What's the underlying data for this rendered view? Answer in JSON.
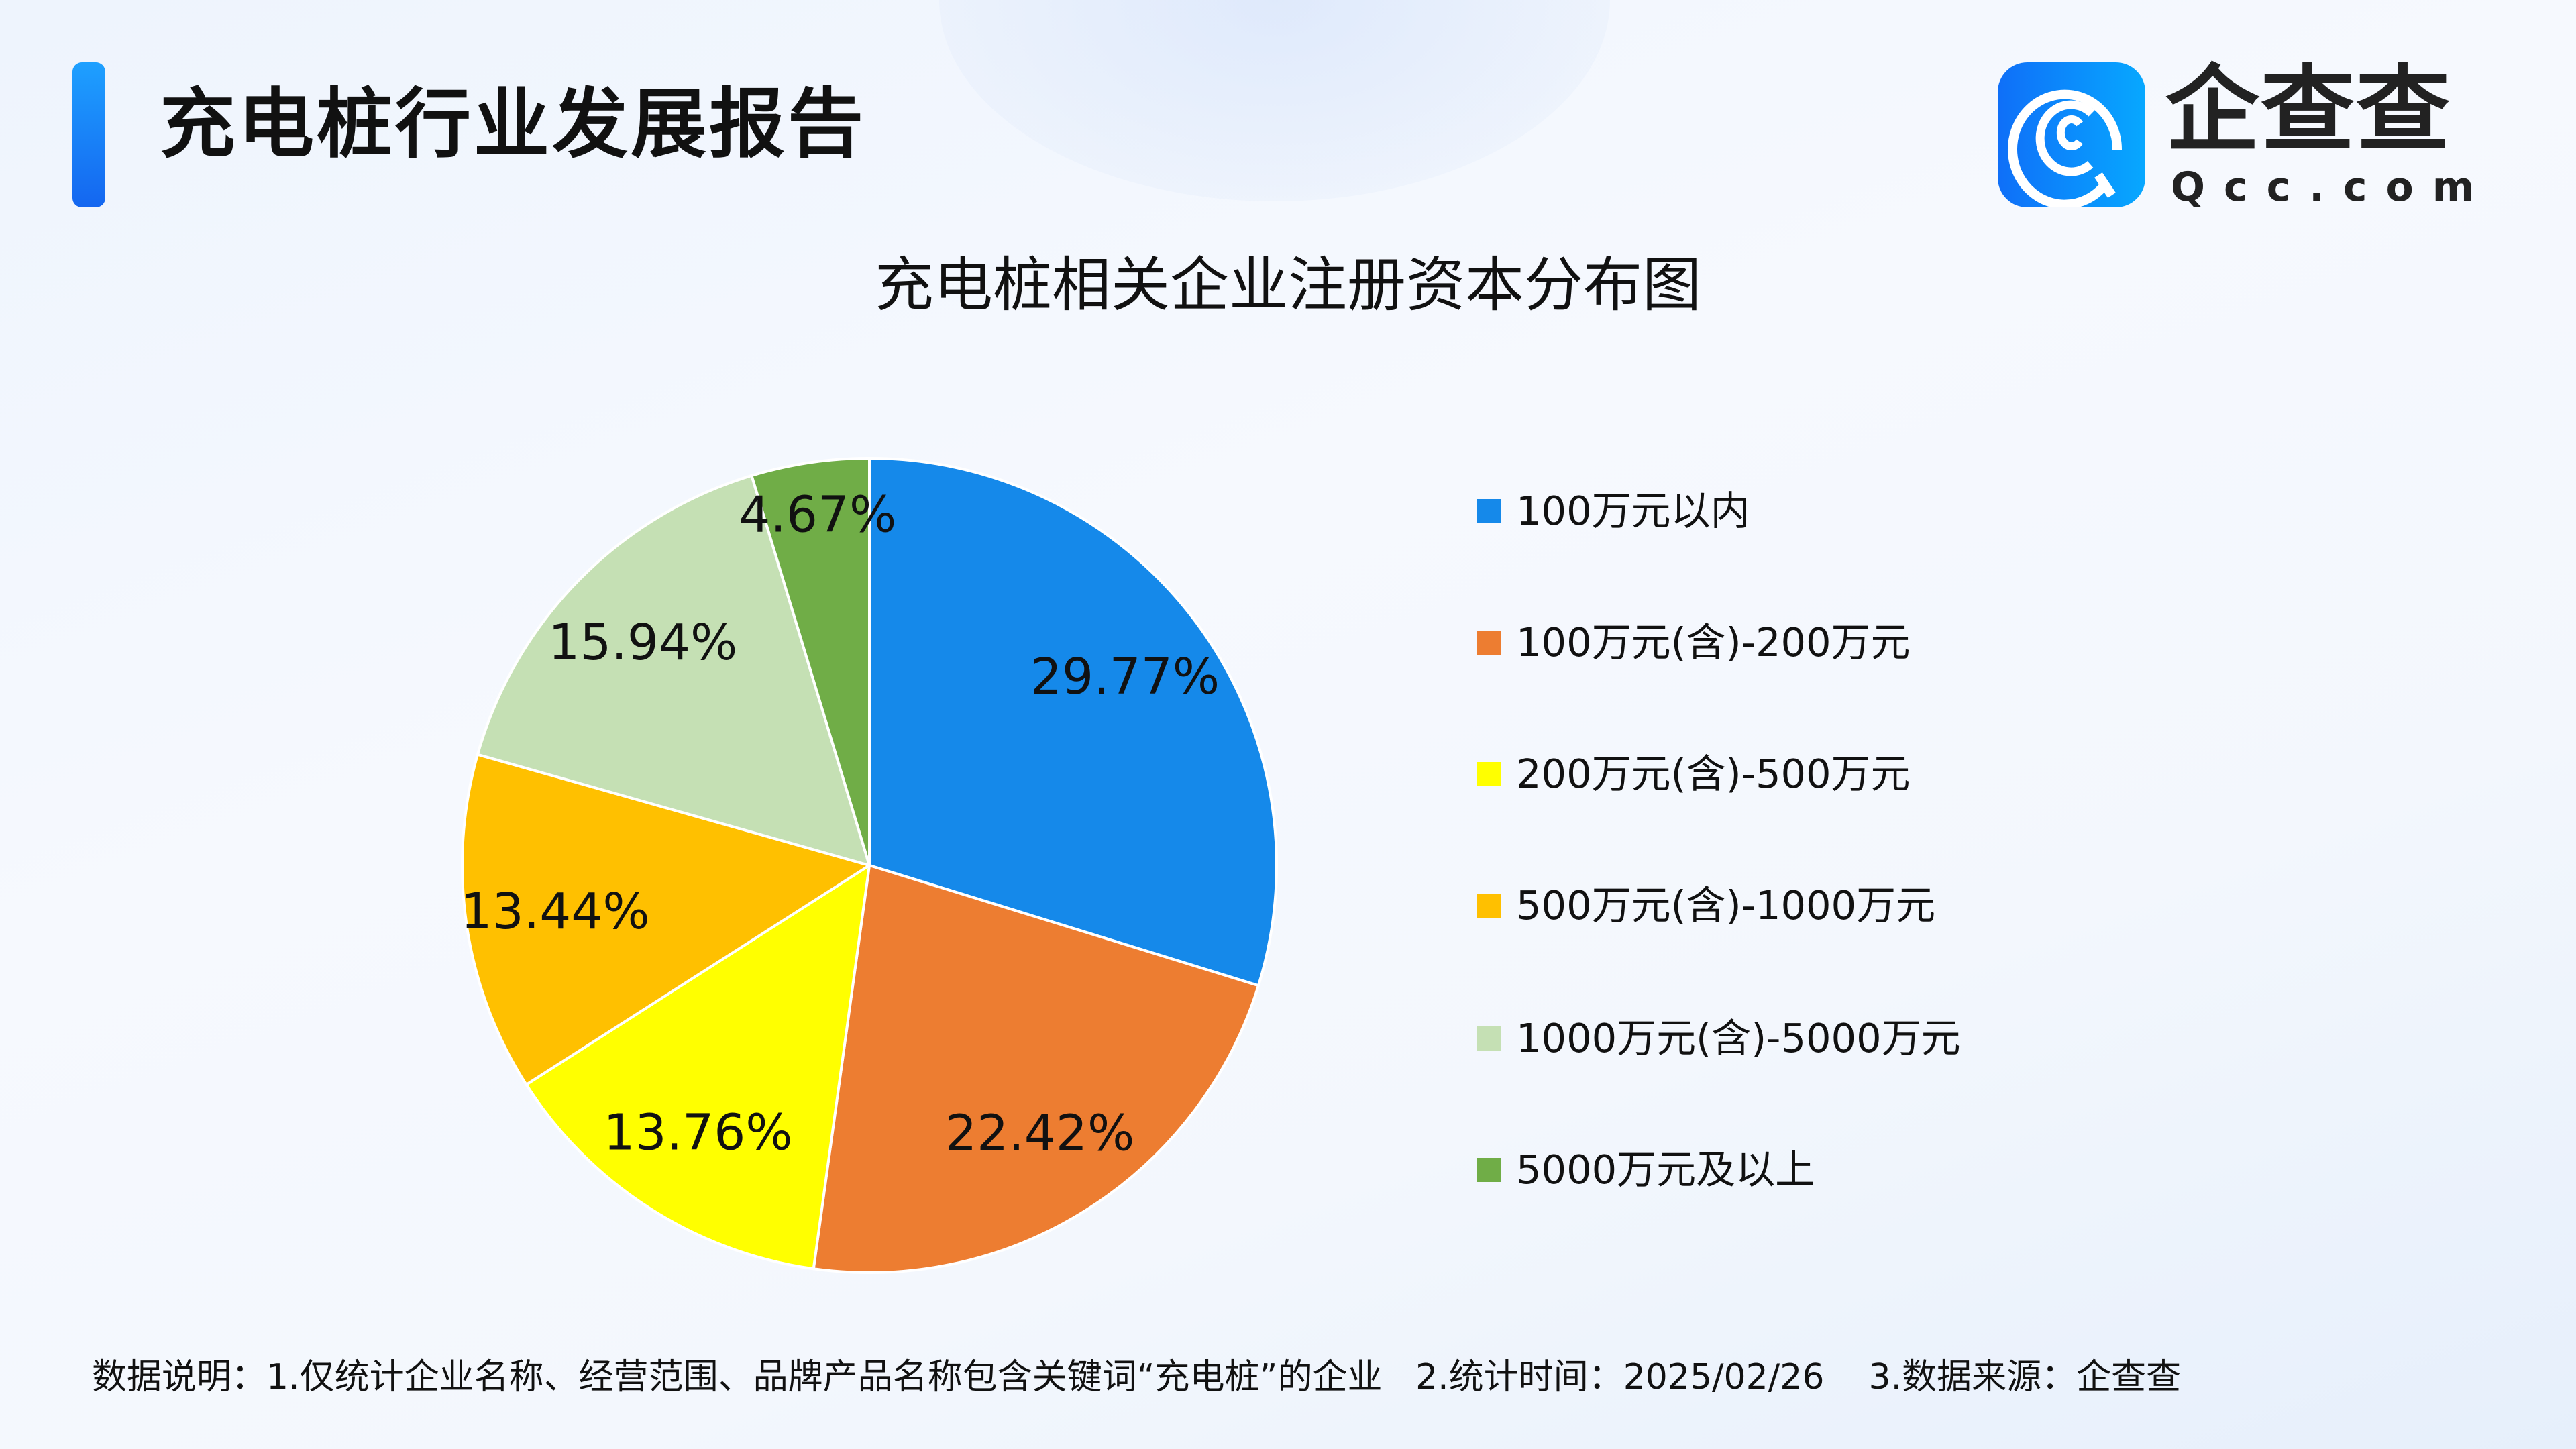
{
  "header": {
    "title": "充电桩行业发展报告"
  },
  "logo": {
    "cn": "企查查",
    "en": "Qcc.com"
  },
  "chart_data": {
    "type": "pie",
    "title": "充电桩相关企业注册资本分布图",
    "start": "top",
    "direction": "clockwise",
    "legend_position": "right",
    "categories": [
      "100万元以内",
      "100万元(含)-200万元",
      "200万元(含)-500万元",
      "500万元(含)-1000万元",
      "1000万元(含)-5000万元",
      "5000万元及以上"
    ],
    "values": [
      29.77,
      22.42,
      13.76,
      13.44,
      15.94,
      4.67
    ],
    "labels": [
      "29.77%",
      "22.42%",
      "13.76%",
      "13.44%",
      "15.94%",
      "4.67%"
    ],
    "colors": [
      "#1589EA",
      "#ED7D31",
      "#FFFF00",
      "#FFC000",
      "#C5E0B4",
      "#70AD47"
    ]
  },
  "footer": {
    "note": "数据说明：1.仅统计企业名称、经营范围、品牌产品名称包含关键词“充电桩”的企业   2.统计时间：2025/02/26    3.数据来源：企查查"
  }
}
